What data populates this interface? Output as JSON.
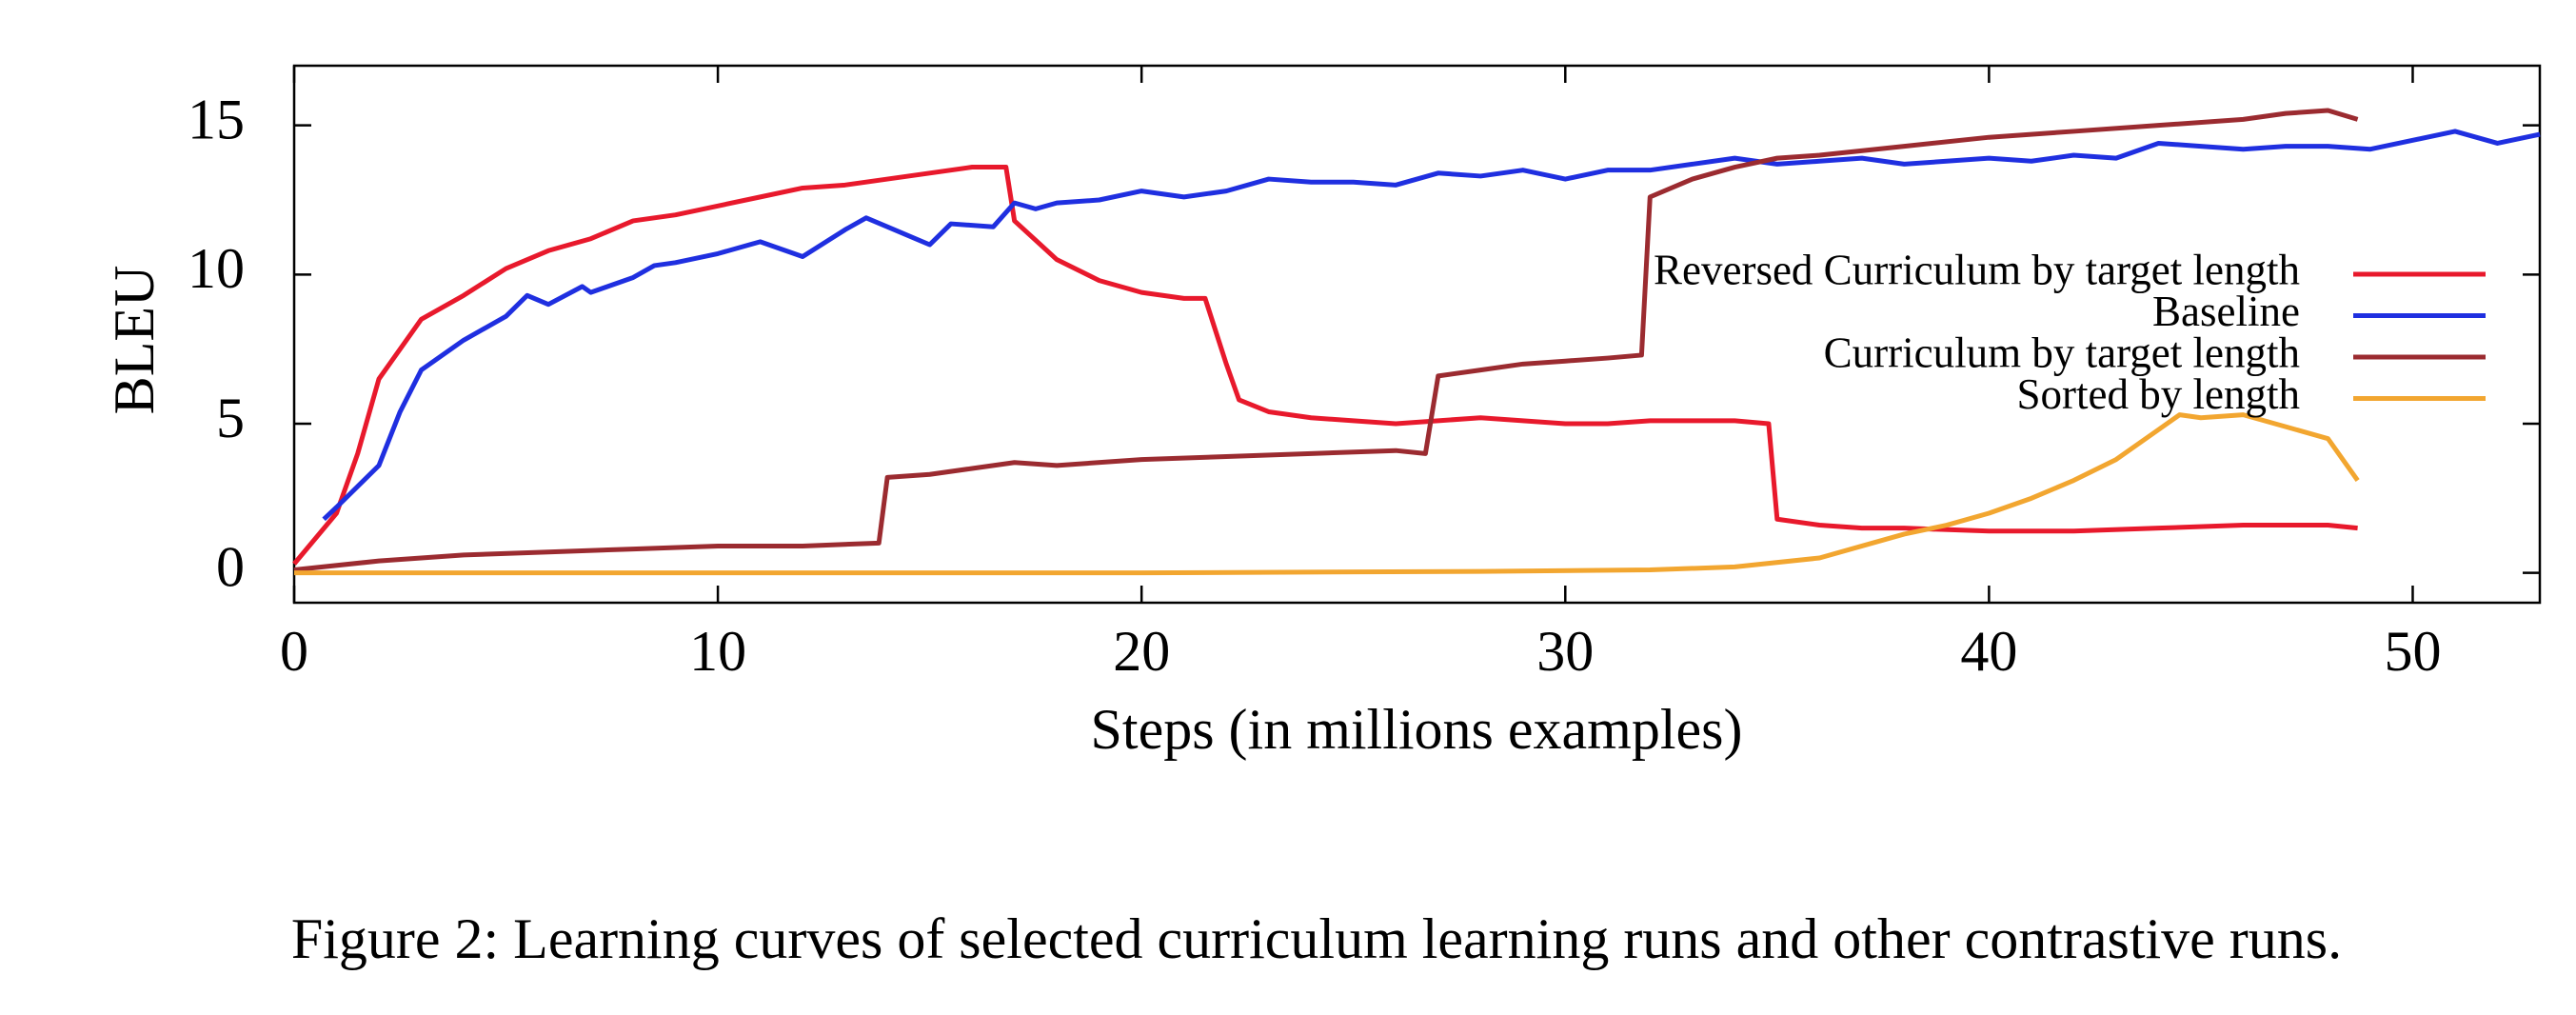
{
  "chart_data": {
    "type": "line",
    "caption": "Figure 2: Learning curves of selected curriculum learning runs and other contrastive runs.",
    "xlabel": "Steps (in millions examples)",
    "ylabel": "BLEU",
    "xlim": [
      0,
      53
    ],
    "ylim": [
      -1,
      17
    ],
    "xticks": [
      0,
      10,
      20,
      30,
      40,
      50
    ],
    "yticks": [
      0,
      5,
      10,
      15
    ],
    "legend": "right",
    "series": [
      {
        "name": "Reversed Curriculum by target length",
        "color": "#e8192c",
        "x": [
          0,
          1,
          1.5,
          2,
          2.5,
          3,
          4,
          5,
          6,
          7,
          8,
          9,
          10,
          11,
          12,
          13,
          14,
          15,
          16,
          16.8,
          17,
          18,
          19,
          20,
          21,
          21.5,
          22,
          22.3,
          23,
          24,
          25,
          26,
          27,
          28,
          29,
          30,
          31,
          32,
          33,
          34,
          34.8,
          35,
          36,
          37,
          38,
          40,
          42,
          44,
          46,
          48,
          48.7
        ],
        "values": [
          0.3,
          2.0,
          4.0,
          6.5,
          7.5,
          8.5,
          9.3,
          10.2,
          10.8,
          11.2,
          11.8,
          12.0,
          12.3,
          12.6,
          12.9,
          13.0,
          13.2,
          13.4,
          13.6,
          13.6,
          11.8,
          10.5,
          9.8,
          9.4,
          9.2,
          9.2,
          7.0,
          5.8,
          5.4,
          5.2,
          5.1,
          5.0,
          5.1,
          5.2,
          5.1,
          5.0,
          5.0,
          5.1,
          5.1,
          5.1,
          5.0,
          1.8,
          1.6,
          1.5,
          1.5,
          1.4,
          1.4,
          1.5,
          1.6,
          1.6,
          1.5
        ]
      },
      {
        "name": "Baseline",
        "color": "#1f2fe0",
        "x": [
          0.7,
          1,
          2,
          2.5,
          3,
          4,
          5,
          5.5,
          6,
          6.8,
          7,
          8,
          8.5,
          9,
          10,
          11,
          12,
          13,
          13.5,
          14,
          15,
          15.5,
          16.5,
          17,
          17.5,
          18,
          19,
          20,
          21,
          22,
          23,
          24,
          25,
          26,
          27,
          28,
          29,
          30,
          31,
          32,
          33,
          34,
          35,
          36,
          37,
          38,
          39,
          40,
          41,
          42,
          43,
          44,
          45,
          46,
          47,
          48,
          49,
          50,
          51,
          52,
          53
        ],
        "values": [
          1.8,
          2.2,
          3.6,
          5.4,
          6.8,
          7.8,
          8.6,
          9.3,
          9.0,
          9.6,
          9.4,
          9.9,
          10.3,
          10.4,
          10.7,
          11.1,
          10.6,
          11.5,
          11.9,
          11.6,
          11.0,
          11.7,
          11.6,
          12.4,
          12.2,
          12.4,
          12.5,
          12.8,
          12.6,
          12.8,
          13.2,
          13.1,
          13.1,
          13.0,
          13.4,
          13.3,
          13.5,
          13.2,
          13.5,
          13.5,
          13.7,
          13.9,
          13.7,
          13.8,
          13.9,
          13.7,
          13.8,
          13.9,
          13.8,
          14.0,
          13.9,
          14.4,
          14.3,
          14.2,
          14.3,
          14.3,
          14.2,
          14.5,
          14.8,
          14.4,
          14.7
        ]
      },
      {
        "name": "Curriculum by target length",
        "color": "#9b2b30",
        "x": [
          0,
          2,
          4,
          6,
          8,
          10,
          12,
          13.8,
          14,
          15,
          16,
          17,
          18,
          20,
          22,
          24,
          26,
          26.7,
          27,
          28,
          29,
          30,
          31,
          31.8,
          32,
          33,
          34,
          35,
          36,
          38,
          40,
          42,
          44,
          46,
          47,
          48,
          48.7
        ],
        "values": [
          0.1,
          0.4,
          0.6,
          0.7,
          0.8,
          0.9,
          0.9,
          1.0,
          3.2,
          3.3,
          3.5,
          3.7,
          3.6,
          3.8,
          3.9,
          4.0,
          4.1,
          4.0,
          6.6,
          6.8,
          7.0,
          7.1,
          7.2,
          7.3,
          12.6,
          13.2,
          13.6,
          13.9,
          14.0,
          14.3,
          14.6,
          14.8,
          15.0,
          15.2,
          15.4,
          15.5,
          15.2
        ]
      },
      {
        "name": "Sorted by length",
        "color": "#f2a630",
        "x": [
          0,
          10,
          20,
          28,
          32,
          34,
          36,
          37,
          38,
          39,
          40,
          41,
          42,
          43,
          44,
          44.5,
          45,
          46,
          47,
          48,
          48.7
        ],
        "values": [
          0,
          0,
          0,
          0.05,
          0.1,
          0.2,
          0.5,
          0.9,
          1.3,
          1.6,
          2.0,
          2.5,
          3.1,
          3.8,
          4.8,
          5.3,
          5.2,
          5.3,
          4.9,
          4.5,
          3.1
        ]
      }
    ]
  }
}
